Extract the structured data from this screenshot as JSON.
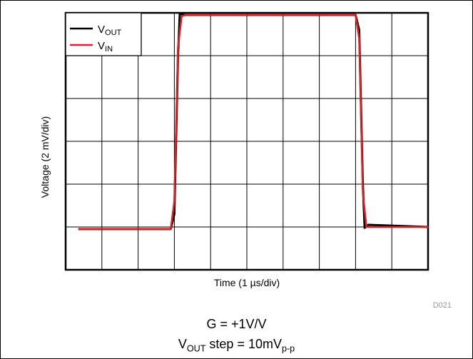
{
  "chart_data": {
    "type": "line",
    "xlabel_prefix": "Time (1 ",
    "xlabel_unit": "µs/div)",
    "ylabel": "Voltage (2 mV/div)",
    "xlim": [
      0,
      10
    ],
    "ylim": [
      -1,
      5
    ],
    "grid": true,
    "legend_position": "top-left",
    "series": [
      {
        "name": "V",
        "name_sub": "OUT",
        "color": "#000000",
        "x": [
          0.35,
          2.9,
          3.0,
          3.1,
          3.15,
          3.3,
          8.0,
          8.1,
          8.2,
          8.25,
          8.35,
          10.0
        ],
        "y": [
          -0.05,
          -0.05,
          0.3,
          4.0,
          4.98,
          4.95,
          4.95,
          4.6,
          1.0,
          -0.02,
          0.05,
          0.0
        ]
      },
      {
        "name": "V",
        "name_sub": "IN",
        "color": "#e31e24",
        "x": [
          0.35,
          2.9,
          3.0,
          3.1,
          3.2,
          3.3,
          8.0,
          8.1,
          8.2,
          8.3,
          8.4,
          10.0
        ],
        "y": [
          -0.05,
          -0.05,
          0.6,
          4.2,
          4.92,
          4.95,
          4.95,
          4.4,
          0.8,
          0.0,
          0.0,
          0.0
        ]
      }
    ],
    "annotation": "D021"
  },
  "captions": {
    "gain": "G = +1V/V",
    "step_prefix": "V",
    "step_sub": "OUT",
    "step_mid": " step = 10mV",
    "step_sub2": "p-p"
  }
}
